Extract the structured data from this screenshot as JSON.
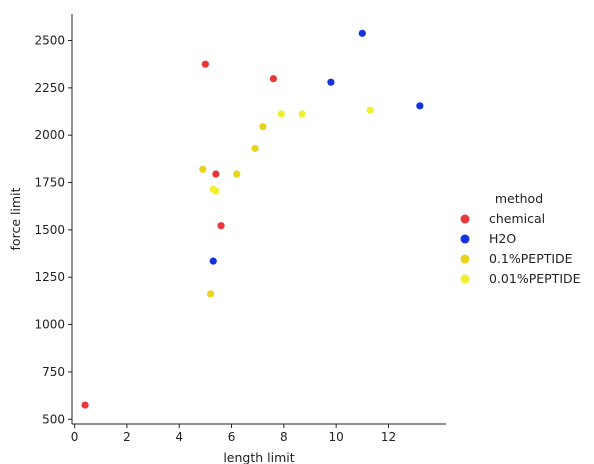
{
  "chart_data": {
    "type": "scatter",
    "title": "",
    "xlabel": "length limit",
    "ylabel": "force limit",
    "xlim": [
      -0.1,
      14.2
    ],
    "ylim": [
      475,
      2640
    ],
    "xticks": [
      0,
      2,
      4,
      6,
      8,
      10,
      12
    ],
    "yticks": [
      500,
      750,
      1000,
      1250,
      1500,
      1750,
      2000,
      2250,
      2500
    ],
    "grid": false,
    "legend": {
      "title": "method",
      "position": "right"
    },
    "series": [
      {
        "name": "chemical",
        "color": "#e8363a",
        "points": [
          {
            "x": 5.0,
            "y": 2375
          },
          {
            "x": 7.6,
            "y": 2298
          },
          {
            "x": 5.4,
            "y": 1795
          },
          {
            "x": 5.6,
            "y": 1522
          },
          {
            "x": 0.4,
            "y": 575
          }
        ]
      },
      {
        "name": "H2O",
        "color": "#1433e0",
        "points": [
          {
            "x": 11.0,
            "y": 2538
          },
          {
            "x": 9.8,
            "y": 2280
          },
          {
            "x": 13.2,
            "y": 2155
          },
          {
            "x": 5.3,
            "y": 1335
          }
        ]
      },
      {
        "name": "0.1%PEPTIDE",
        "color": "#e8d21a",
        "points": [
          {
            "x": 4.9,
            "y": 1820
          },
          {
            "x": 6.9,
            "y": 1930
          },
          {
            "x": 7.2,
            "y": 2045
          },
          {
            "x": 6.2,
            "y": 1795
          },
          {
            "x": 5.2,
            "y": 1162
          }
        ]
      },
      {
        "name": "0.01%PEPTIDE",
        "color": "#f0ef2e",
        "points": [
          {
            "x": 7.9,
            "y": 2112
          },
          {
            "x": 8.7,
            "y": 2112
          },
          {
            "x": 11.3,
            "y": 2132
          },
          {
            "x": 5.3,
            "y": 1715
          },
          {
            "x": 5.4,
            "y": 1705
          }
        ]
      }
    ]
  }
}
